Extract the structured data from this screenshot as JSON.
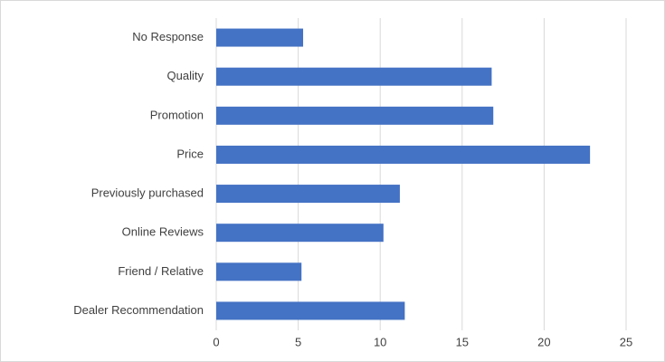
{
  "chart_data": {
    "type": "bar",
    "orientation": "horizontal",
    "categories": [
      "No Response",
      "Quality",
      "Promotion",
      "Price",
      "Previously purchased",
      "Online Reviews",
      "Friend / Relative",
      "Dealer Recommendation"
    ],
    "values": [
      5.3,
      16.8,
      16.9,
      22.8,
      11.2,
      10.2,
      5.2,
      11.5
    ],
    "color": "#4472c4",
    "xlim": [
      0,
      25
    ],
    "xticks": [
      0,
      5,
      10,
      15,
      20,
      25
    ],
    "grid": true
  }
}
